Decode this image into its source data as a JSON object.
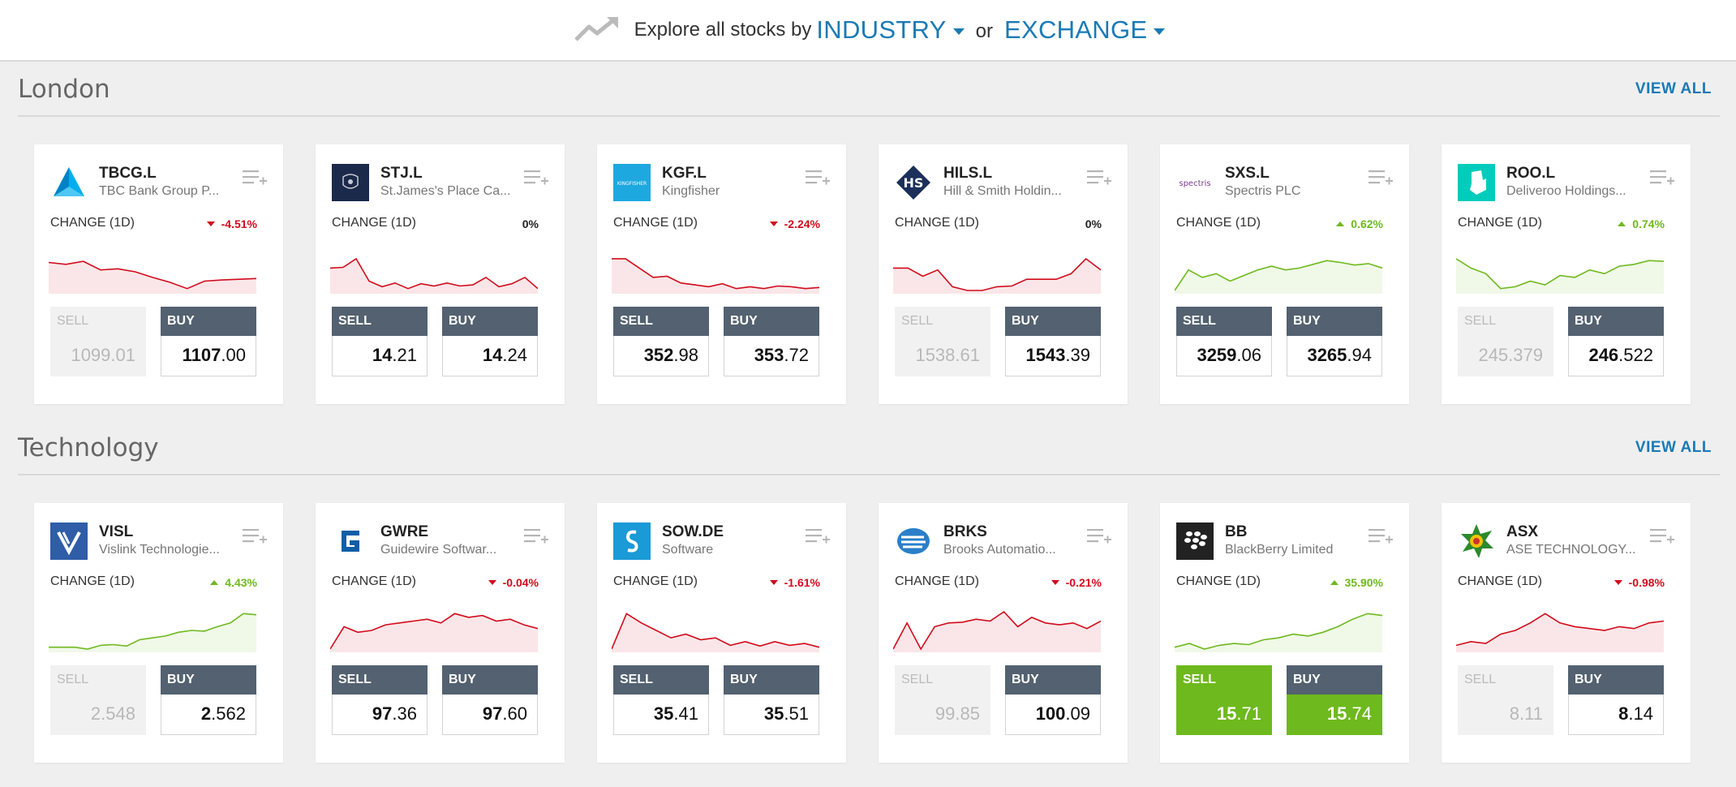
{
  "explore": {
    "prefix": "Explore all stocks by",
    "industry": "INDUSTRY",
    "or": "or",
    "exchange": "EXCHANGE"
  },
  "sections": [
    {
      "title": "London",
      "view_all": "VIEW ALL",
      "cards": [
        {
          "ticker": "TBCG.L",
          "company": "TBC Bank Group P...",
          "change_label": "CHANGE (1D)",
          "change": "-4.51%",
          "direction": "neg",
          "sell_label": "SELL",
          "sell_int": "1099",
          "sell_dec": ".01",
          "sell_state": "disabled",
          "buy_label": "BUY",
          "buy_int": "1107",
          "buy_dec": ".00",
          "logo": "tbc-triangle-icon",
          "spark": [
            0.75,
            0.7,
            0.78,
            0.55,
            0.58,
            0.5,
            0.35,
            0.22,
            0.05,
            0.25,
            0.28,
            0.3,
            0.32
          ]
        },
        {
          "ticker": "STJ.L",
          "company": "St.James's Place Ca...",
          "change_label": "CHANGE (1D)",
          "change": "0%",
          "direction": "flat",
          "sell_label": "SELL",
          "sell_int": "14",
          "sell_dec": ".21",
          "sell_state": "normal",
          "buy_label": "BUY",
          "buy_int": "14",
          "buy_dec": ".24",
          "logo": "stj-crest-icon",
          "spark": [
            0.6,
            0.62,
            0.85,
            0.25,
            0.1,
            0.2,
            0.05,
            0.18,
            0.12,
            0.2,
            0.12,
            0.15,
            0.35,
            0.1,
            0.18,
            0.35,
            0.05
          ]
        },
        {
          "ticker": "KGF.L",
          "company": "Kingfisher",
          "change_label": "CHANGE (1D)",
          "change": "-2.24%",
          "direction": "neg",
          "sell_label": "SELL",
          "sell_int": "352",
          "sell_dec": ".98",
          "sell_state": "normal",
          "buy_label": "BUY",
          "buy_int": "353",
          "buy_dec": ".72",
          "logo": "kingfisher-icon",
          "spark": [
            0.85,
            0.85,
            0.6,
            0.35,
            0.38,
            0.2,
            0.15,
            0.1,
            0.18,
            0.05,
            0.1,
            0.05,
            0.12,
            0.1,
            0.05,
            0.08
          ]
        },
        {
          "ticker": "HILS.L",
          "company": "Hill & Smith Holdin...",
          "change_label": "CHANGE (1D)",
          "change": "0%",
          "direction": "flat",
          "sell_label": "SELL",
          "sell_int": "1538",
          "sell_dec": ".61",
          "sell_state": "disabled",
          "buy_label": "BUY",
          "buy_int": "1543",
          "buy_dec": ".39",
          "logo": "hill-smith-icon",
          "spark": [
            0.6,
            0.6,
            0.38,
            0.55,
            0.1,
            0.0,
            0.0,
            0.1,
            0.12,
            0.3,
            0.3,
            0.3,
            0.45,
            0.85,
            0.55
          ]
        },
        {
          "ticker": "SXS.L",
          "company": "Spectris PLC",
          "change_label": "CHANGE (1D)",
          "change": "0.62%",
          "direction": "pos",
          "sell_label": "SELL",
          "sell_int": "3259",
          "sell_dec": ".06",
          "sell_state": "normal",
          "buy_label": "BUY",
          "buy_int": "3265",
          "buy_dec": ".94",
          "logo": "spectris-icon",
          "spark": [
            0.0,
            0.55,
            0.35,
            0.45,
            0.25,
            0.4,
            0.55,
            0.65,
            0.55,
            0.6,
            0.7,
            0.8,
            0.75,
            0.68,
            0.72,
            0.6
          ]
        },
        {
          "ticker": "ROO.L",
          "company": "Deliveroo Holdings...",
          "change_label": "CHANGE (1D)",
          "change": "0.74%",
          "direction": "pos",
          "sell_label": "SELL",
          "sell_int": "245",
          "sell_dec": ".379",
          "sell_state": "disabled",
          "buy_label": "BUY",
          "buy_int": "246",
          "buy_dec": ".522",
          "logo": "deliveroo-icon",
          "spark": [
            0.85,
            0.6,
            0.45,
            0.05,
            0.1,
            0.25,
            0.15,
            0.4,
            0.35,
            0.55,
            0.45,
            0.65,
            0.7,
            0.8,
            0.78
          ]
        }
      ]
    },
    {
      "title": "Technology",
      "view_all": "VIEW ALL",
      "cards": [
        {
          "ticker": "VISL",
          "company": "Vislink Technologie...",
          "change_label": "CHANGE (1D)",
          "change": "4.43%",
          "direction": "pos",
          "sell_label": "SELL",
          "sell_int": "2",
          "sell_dec": ".548",
          "sell_state": "disabled",
          "buy_label": "BUY",
          "buy_int": "2",
          "buy_dec": ".562",
          "logo": "vislink-icon",
          "spark": [
            0.05,
            0.05,
            0.05,
            0.0,
            0.1,
            0.12,
            0.08,
            0.25,
            0.3,
            0.35,
            0.45,
            0.5,
            0.48,
            0.6,
            0.7,
            0.95,
            0.92
          ]
        },
        {
          "ticker": "GWRE",
          "company": "Guidewire Softwar...",
          "change_label": "CHANGE (1D)",
          "change": "-0.04%",
          "direction": "neg",
          "sell_label": "SELL",
          "sell_int": "97",
          "sell_dec": ".36",
          "sell_state": "normal",
          "buy_label": "BUY",
          "buy_int": "97",
          "buy_dec": ".60",
          "logo": "guidewire-icon",
          "spark": [
            0.0,
            0.6,
            0.45,
            0.5,
            0.65,
            0.7,
            0.75,
            0.8,
            0.7,
            0.95,
            0.85,
            0.9,
            0.75,
            0.8,
            0.65,
            0.55
          ]
        },
        {
          "ticker": "SOW.DE",
          "company": "Software",
          "change_label": "CHANGE (1D)",
          "change": "-1.61%",
          "direction": "neg",
          "sell_label": "SELL",
          "sell_int": "35",
          "sell_dec": ".41",
          "sell_state": "normal",
          "buy_label": "BUY",
          "buy_int": "35",
          "buy_dec": ".51",
          "logo": "software-ag-icon",
          "spark": [
            0.0,
            0.95,
            0.7,
            0.5,
            0.3,
            0.4,
            0.25,
            0.3,
            0.1,
            0.2,
            0.08,
            0.2,
            0.1,
            0.15,
            0.05
          ]
        },
        {
          "ticker": "BRKS",
          "company": "Brooks Automatio...",
          "change_label": "CHANGE (1D)",
          "change": "-0.21%",
          "direction": "neg",
          "sell_label": "SELL",
          "sell_int": "99",
          "sell_dec": ".85",
          "sell_state": "disabled",
          "buy_label": "BUY",
          "buy_int": "100",
          "buy_dec": ".09",
          "logo": "brooks-icon",
          "spark": [
            0.0,
            0.7,
            0.0,
            0.6,
            0.7,
            0.72,
            0.8,
            0.75,
            1.0,
            0.6,
            0.85,
            0.7,
            0.65,
            0.7,
            0.55,
            0.75
          ]
        },
        {
          "ticker": "BB",
          "company": "BlackBerry Limited",
          "change_label": "CHANGE (1D)",
          "change": "35.90%",
          "direction": "pos",
          "sell_label": "SELL",
          "sell_int": "15",
          "sell_dec": ".71",
          "sell_state": "green",
          "buy_label": "BUY",
          "buy_int": "15",
          "buy_dec": ".74",
          "buy_state": "green",
          "logo": "blackberry-icon",
          "spark": [
            0.05,
            0.15,
            0.0,
            0.1,
            0.15,
            0.12,
            0.25,
            0.3,
            0.4,
            0.35,
            0.45,
            0.6,
            0.8,
            0.95,
            0.9
          ]
        },
        {
          "ticker": "ASX",
          "company": "ASE TECHNOLOGY...",
          "change_label": "CHANGE (1D)",
          "change": "-0.98%",
          "direction": "neg",
          "sell_label": "SELL",
          "sell_int": "8",
          "sell_dec": ".11",
          "sell_state": "disabled",
          "buy_label": "BUY",
          "buy_int": "8",
          "buy_dec": ".14",
          "logo": "ase-icon",
          "spark": [
            0.1,
            0.2,
            0.15,
            0.4,
            0.5,
            0.7,
            0.95,
            0.7,
            0.6,
            0.55,
            0.5,
            0.6,
            0.55,
            0.7,
            0.75
          ]
        }
      ]
    }
  ],
  "colors": {
    "accent": "#1a7ab5",
    "negative": "#d10b1b",
    "positive": "#6eb91d",
    "button": "#536170"
  }
}
